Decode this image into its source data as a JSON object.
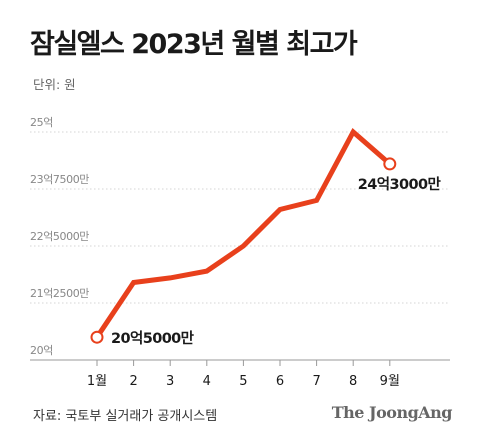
{
  "title": "잠실엘스 2023년 월별 최고가",
  "unit": "단위: 원",
  "source": "자료: 국토부 실거래가 공개시스템",
  "brand": "The JoongAng",
  "colors": {
    "line": "#E8401C",
    "grid": "#d4d4d4",
    "axis": "#999999",
    "tick_text": "#888888"
  },
  "chart_data": {
    "type": "line",
    "title": "잠실엘스 2023년 월별 최고가",
    "categories": [
      "1월",
      "2",
      "3",
      "4",
      "5",
      "6",
      "7",
      "8",
      "9월"
    ],
    "series": [
      {
        "values": [
          2050000000,
          2170000000,
          2180000000,
          2195000000,
          2250000000,
          2330000000,
          2350000000,
          2500000000,
          2430000000
        ]
      }
    ],
    "ylim": [
      2000000000,
      2500000000
    ],
    "yticks": [
      {
        "value": 2000000000,
        "label": "20억"
      },
      {
        "value": 2125000000,
        "label": "21억2500만"
      },
      {
        "value": 2250000000,
        "label": "22억5000만"
      },
      {
        "value": 2375000000,
        "label": "23억7500만"
      },
      {
        "value": 2500000000,
        "label": "25억"
      }
    ],
    "annotations": [
      {
        "index": 0,
        "label": "20억5000만"
      },
      {
        "index": 8,
        "label": "24억3000만"
      }
    ],
    "grid": true
  }
}
